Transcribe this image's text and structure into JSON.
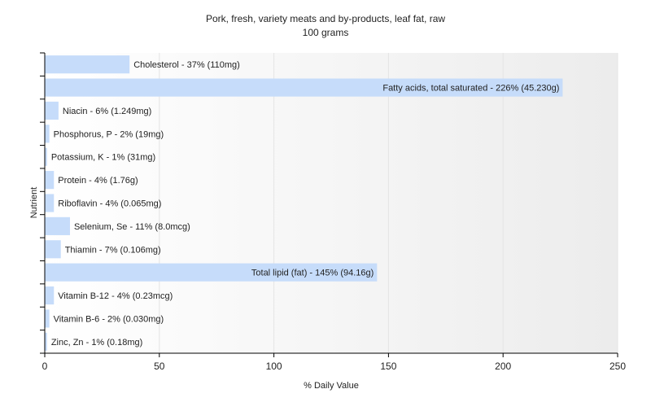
{
  "chart_data": {
    "type": "bar",
    "orientation": "horizontal",
    "title": "Pork, fresh, variety meats and by-products, leaf fat, raw",
    "subtitle": "100 grams",
    "xlabel": "% Daily Value",
    "ylabel": "Nutrient",
    "xlim": [
      0,
      250
    ],
    "xticks": [
      0,
      50,
      100,
      150,
      200,
      250
    ],
    "grid": true,
    "bar_color": "#c6dcfa",
    "categories": [
      "Cholesterol",
      "Fatty acids, total saturated",
      "Niacin",
      "Phosphorus, P",
      "Potassium, K",
      "Protein",
      "Riboflavin",
      "Selenium, Se",
      "Thiamin",
      "Total lipid (fat)",
      "Vitamin B-12",
      "Vitamin B-6",
      "Zinc, Zn"
    ],
    "values": [
      37,
      226,
      6,
      2,
      1,
      4,
      4,
      11,
      7,
      145,
      4,
      2,
      1
    ],
    "labels": [
      "Cholesterol - 37% (110mg)",
      "Fatty acids, total saturated - 226% (45.230g)",
      "Niacin - 6% (1.249mg)",
      "Phosphorus, P - 2% (19mg)",
      "Potassium, K - 1% (31mg)",
      "Protein - 4% (1.76g)",
      "Riboflavin - 4% (0.065mg)",
      "Selenium, Se - 11% (8.0mcg)",
      "Thiamin - 7% (0.106mg)",
      "Total lipid (fat) - 145% (94.16g)",
      "Vitamin B-12 - 4% (0.23mcg)",
      "Vitamin B-6 - 2% (0.030mg)",
      "Zinc, Zn - 1% (0.18mg)"
    ]
  }
}
